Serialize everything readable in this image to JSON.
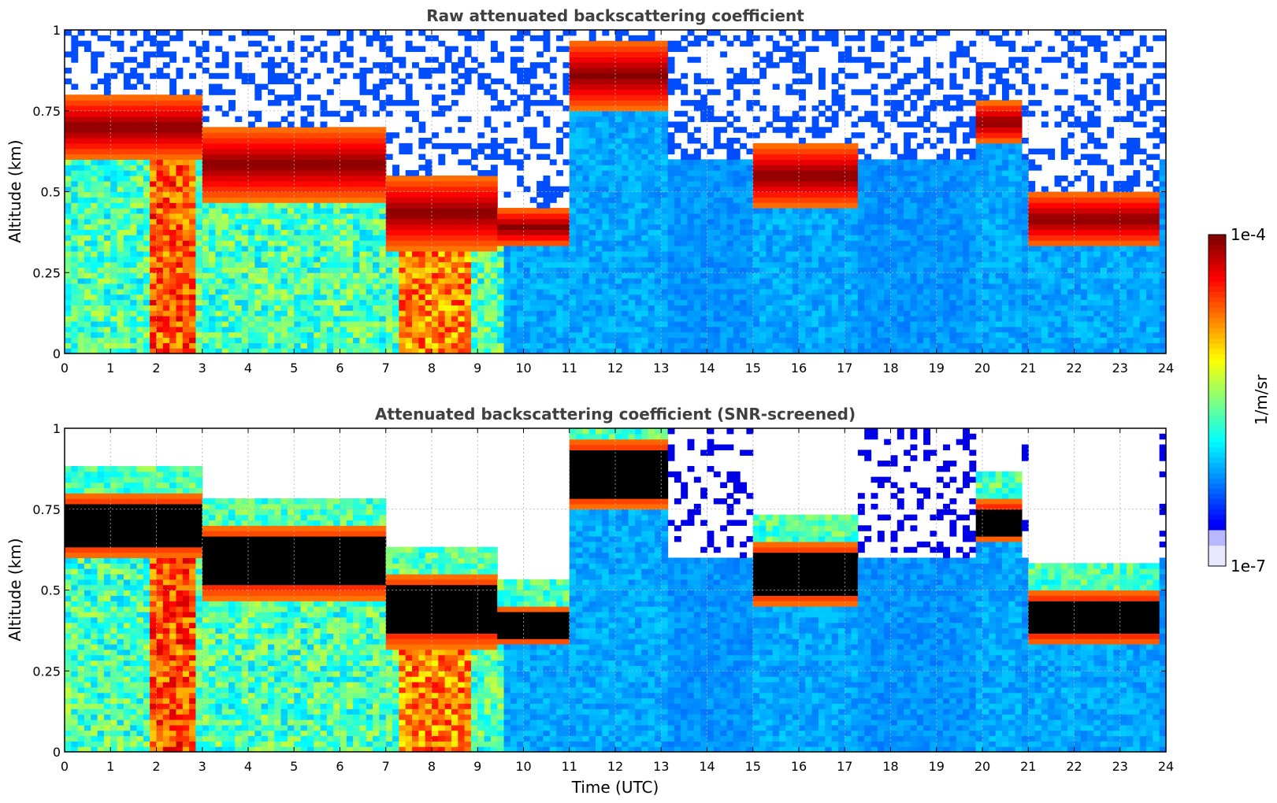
{
  "chart_data": [
    {
      "type": "heatmap",
      "title": "Raw attenuated backscattering coefficient",
      "xlabel": "",
      "ylabel": "Altitude (km)",
      "xlim": [
        0,
        24
      ],
      "ylim": [
        0,
        1
      ],
      "xticks": [
        "0",
        "1",
        "2",
        "3",
        "4",
        "5",
        "6",
        "7",
        "8",
        "9",
        "10",
        "11",
        "12",
        "13",
        "14",
        "15",
        "16",
        "17",
        "18",
        "19",
        "20",
        "21",
        "22",
        "23",
        "24"
      ],
      "yticks": [
        "0",
        "0.25",
        "0.5",
        "0.75",
        "1"
      ],
      "grid": true,
      "screened": false,
      "cloud_layers": [
        {
          "t_start": 0,
          "t_end": 3,
          "base_km": 0.6,
          "top_km": 0.8
        },
        {
          "t_start": 3,
          "t_end": 7,
          "base_km": 0.47,
          "top_km": 0.7
        },
        {
          "t_start": 7,
          "t_end": 9.5,
          "base_km": 0.32,
          "top_km": 0.55
        },
        {
          "t_start": 9.5,
          "t_end": 11,
          "base_km": 0.33,
          "top_km": 0.45
        },
        {
          "t_start": 11,
          "t_end": 13.2,
          "base_km": 0.75,
          "top_km": 0.97
        },
        {
          "t_start": 15,
          "t_end": 17.3,
          "base_km": 0.45,
          "top_km": 0.65
        },
        {
          "t_start": 19.8,
          "t_end": 20.8,
          "base_km": 0.65,
          "top_km": 0.78
        },
        {
          "t_start": 21,
          "t_end": 23.8,
          "base_km": 0.33,
          "top_km": 0.5
        }
      ]
    },
    {
      "type": "heatmap",
      "title": "Attenuated backscattering coefficient (SNR-screened)",
      "xlabel": "Time (UTC)",
      "ylabel": "Altitude (km)",
      "xlim": [
        0,
        24
      ],
      "ylim": [
        0,
        1
      ],
      "xticks": [
        "0",
        "1",
        "2",
        "3",
        "4",
        "5",
        "6",
        "7",
        "8",
        "9",
        "10",
        "11",
        "12",
        "13",
        "14",
        "15",
        "16",
        "17",
        "18",
        "19",
        "20",
        "21",
        "22",
        "23",
        "24"
      ],
      "yticks": [
        "0",
        "0.25",
        "0.5",
        "0.75",
        "1"
      ],
      "grid": true,
      "screened": true,
      "cloud_layers": [
        {
          "t_start": 0,
          "t_end": 3,
          "base_km": 0.6,
          "top_km": 0.8
        },
        {
          "t_start": 3,
          "t_end": 7,
          "base_km": 0.47,
          "top_km": 0.7
        },
        {
          "t_start": 7,
          "t_end": 9.5,
          "base_km": 0.32,
          "top_km": 0.55
        },
        {
          "t_start": 9.5,
          "t_end": 11,
          "base_km": 0.33,
          "top_km": 0.45
        },
        {
          "t_start": 11,
          "t_end": 13.2,
          "base_km": 0.75,
          "top_km": 0.97
        },
        {
          "t_start": 15,
          "t_end": 17.3,
          "base_km": 0.45,
          "top_km": 0.65
        },
        {
          "t_start": 19.8,
          "t_end": 20.8,
          "base_km": 0.65,
          "top_km": 0.78
        },
        {
          "t_start": 21,
          "t_end": 23.8,
          "base_km": 0.33,
          "top_km": 0.5
        }
      ]
    }
  ],
  "colorbar": {
    "label": "1/m/sr",
    "max_label": "1e-4",
    "min_label": "1e-7",
    "scale": "log",
    "colormap": "jet"
  }
}
